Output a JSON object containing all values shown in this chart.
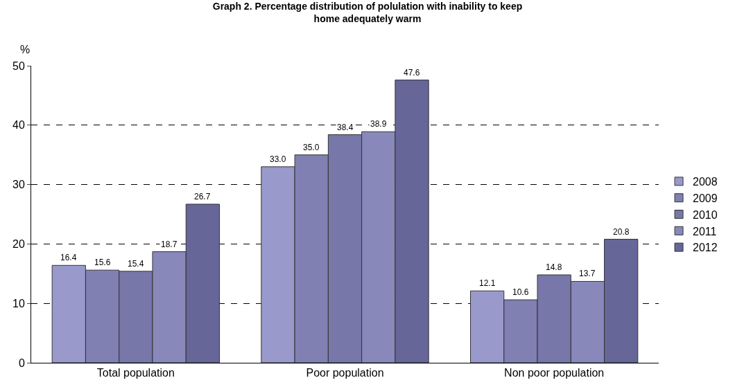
{
  "chart_data": {
    "type": "bar",
    "title": "Graph 2. Percentage distribution of polulation with inability to keep\nhome adequately warm",
    "ylabel": "%",
    "categories": [
      "Total population",
      "Poor population",
      "Non poor population"
    ],
    "series": [
      {
        "name": "2008",
        "color": "#9999cc",
        "values": [
          16.4,
          33.0,
          12.1
        ]
      },
      {
        "name": "2009",
        "color": "#8080b3",
        "values": [
          15.6,
          35.0,
          10.6
        ]
      },
      {
        "name": "2010",
        "color": "#7777aa",
        "values": [
          15.4,
          38.4,
          14.8
        ]
      },
      {
        "name": "2011",
        "color": "#8888bb",
        "values": [
          18.7,
          38.9,
          13.7
        ]
      },
      {
        "name": "2012",
        "color": "#666699",
        "values": [
          26.7,
          47.6,
          20.8
        ]
      }
    ],
    "value_labels": [
      [
        "16.4",
        "33.0",
        "12.1"
      ],
      [
        "15.6",
        "35.0",
        "10.6"
      ],
      [
        "15.4",
        "38.4",
        "14.8"
      ],
      [
        "18.7",
        "38.9",
        "13.7"
      ],
      [
        "26.7",
        "47.6",
        "20.8"
      ]
    ],
    "ylim": [
      0,
      50
    ],
    "yticks": [
      0,
      10,
      20,
      30,
      40,
      50
    ],
    "grid": "y",
    "legend": "right"
  }
}
